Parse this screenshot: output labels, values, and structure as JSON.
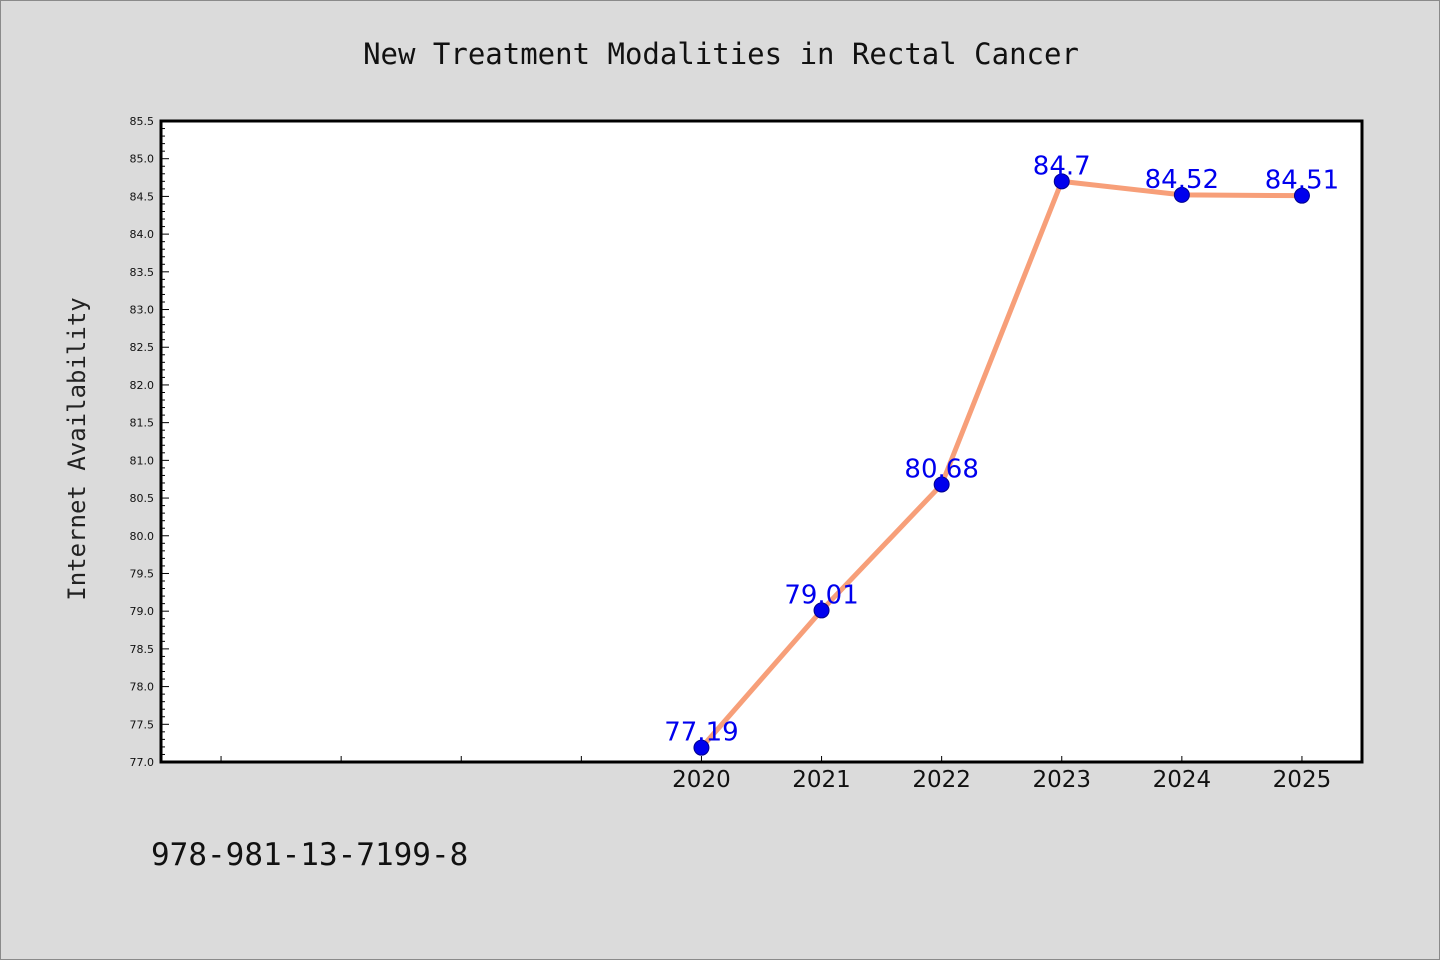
{
  "colors": {
    "background": "#dbdbdb",
    "plot_bg": "#ffffff",
    "line": "#f79f79",
    "marker": "#0000ee",
    "marker_edge": "#00008b",
    "data_label": "#0000ee",
    "axis": "#000000"
  },
  "footer_text": "978-981-13-7199-8",
  "chart_data": {
    "type": "line",
    "title": "New Treatment Modalities in Rectal Cancer",
    "ylabel": "Internet Availability",
    "xlabel": "",
    "x_slots": 10,
    "x_range": [
      2015.5,
      2025.5
    ],
    "categories": [
      "2020",
      "2021",
      "2022",
      "2023",
      "2024",
      "2025"
    ],
    "x": [
      2020,
      2021,
      2022,
      2023,
      2024,
      2025
    ],
    "series": [
      {
        "values": [
          77.19,
          79.01,
          80.68,
          84.7,
          84.52,
          84.51
        ],
        "labels": [
          "77.19",
          "79.01",
          "80.68",
          "84.7",
          "84.52",
          "84.51"
        ]
      }
    ],
    "ylim": [
      77.0,
      85.5
    ],
    "yticks": [
      "77.0",
      "77.5",
      "78.0",
      "78.5",
      "79.0",
      "79.5",
      "80.0",
      "80.5",
      "81.0",
      "81.5",
      "82.0",
      "82.5",
      "83.0",
      "83.5",
      "84.0",
      "84.5",
      "85.0",
      "85.5"
    ],
    "grid": false,
    "legend": "none"
  }
}
